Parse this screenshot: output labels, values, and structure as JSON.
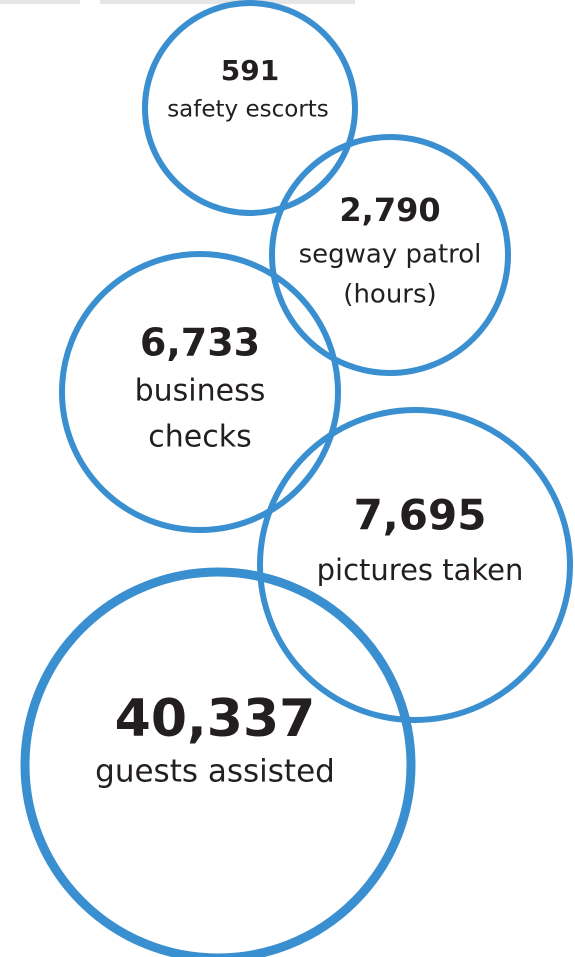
{
  "items": [
    {
      "value": "591",
      "label": [
        "safety escorts"
      ]
    },
    {
      "value": "2,790",
      "label": [
        "segway patrol",
        "(hours)"
      ]
    },
    {
      "value": "6,733",
      "label": [
        "business",
        "checks"
      ]
    },
    {
      "value": "7,695",
      "label": [
        "pictures taken"
      ]
    },
    {
      "value": "40,337",
      "label": [
        "guests assisted"
      ]
    }
  ]
}
